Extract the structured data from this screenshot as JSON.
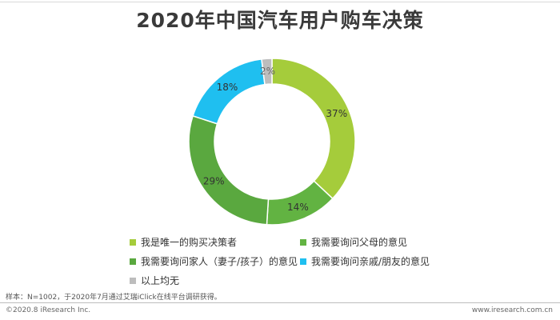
{
  "page": {
    "title": "2020年中国汽车用户购车决策",
    "note": "样本：N=1002，于2020年7月通过艾瑞iClick在线平台调研获得。",
    "footer_left": "©2020.8 iResearch Inc.",
    "footer_right": "www.iresearch.com.cn"
  },
  "chart_data": {
    "type": "pie",
    "subtype": "donut",
    "title": "2020年中国汽车用户购车决策",
    "legend_position": "bottom",
    "categories": [
      "我是唯一的购买决策者",
      "我需要询问父母的意见",
      "我需要询问家人（妻子/孩子）的意见",
      "我需要询问亲戚/朋友的意见",
      "以上均无"
    ],
    "values": [
      37,
      14,
      29,
      18,
      2
    ],
    "labels": [
      "37%",
      "14%",
      "29%",
      "18%",
      "2%"
    ],
    "colors": [
      "#a5cc3b",
      "#62b342",
      "#5aa83f",
      "#1fbff0",
      "#bdbdbd"
    ]
  }
}
